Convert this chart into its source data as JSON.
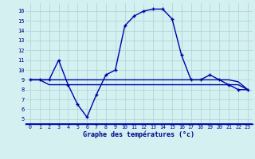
{
  "xlabel": "Graphe des températures (°c)",
  "hours": [
    0,
    1,
    2,
    3,
    4,
    5,
    6,
    7,
    8,
    9,
    10,
    11,
    12,
    13,
    14,
    15,
    16,
    17,
    18,
    19,
    20,
    21,
    22,
    23
  ],
  "temp_main": [
    9,
    9,
    9,
    11,
    8.5,
    6.5,
    5.2,
    7.5,
    9.5,
    10,
    14.5,
    15.5,
    16,
    16.2,
    16.2,
    15.2,
    11.5,
    9,
    9,
    9.5,
    9,
    8.5,
    8,
    8
  ],
  "temp_line2": [
    9,
    9,
    8.5,
    8.5,
    8.5,
    8.5,
    8.5,
    8.5,
    8.5,
    8.5,
    8.5,
    8.5,
    8.5,
    8.5,
    8.5,
    8.5,
    8.5,
    8.5,
    8.5,
    8.5,
    8.5,
    8.5,
    8.5,
    8
  ],
  "temp_line3": [
    9,
    9,
    9,
    9,
    9,
    9,
    9,
    9,
    9,
    9,
    9,
    9,
    9,
    9,
    9,
    9,
    9,
    9,
    9,
    9,
    9,
    9,
    8.8,
    8
  ],
  "line_color": "#0000aa",
  "bg_color": "#d4f0f0",
  "grid_color": "#b0d8d8",
  "ylim": [
    4.5,
    16.8
  ],
  "yticks": [
    5,
    6,
    7,
    8,
    9,
    10,
    11,
    12,
    13,
    14,
    15,
    16
  ],
  "label_color": "#00008B",
  "marker": "+"
}
